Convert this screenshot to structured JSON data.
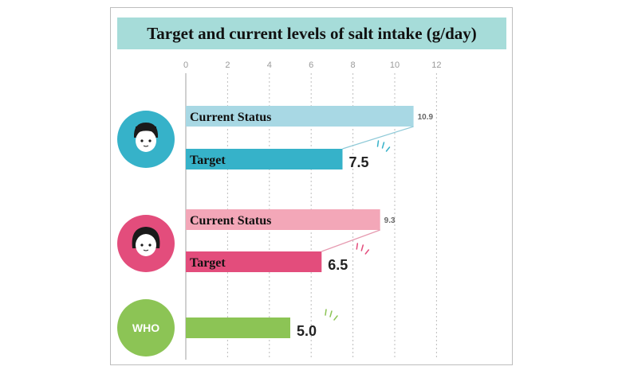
{
  "colors": {
    "title_bg": "#a6dcd9",
    "men_current": "#a8d8e4",
    "men_target": "#36b2c9",
    "men_icon": "#36b2c9",
    "women_current": "#f3a7b8",
    "women_target": "#e34d7c",
    "women_icon": "#e34d7c",
    "who": "#8cc455",
    "who_icon": "#8cc455"
  },
  "chart_data": {
    "type": "bar",
    "orientation": "horizontal",
    "title": "Target and current levels of salt intake (g/day)",
    "xlim": [
      0,
      12
    ],
    "ticks": [
      "0",
      "2",
      "4",
      "6",
      "8",
      "10",
      "12"
    ],
    "grid": true,
    "bars": [
      {
        "group": "men",
        "label": "Current Status",
        "value": 10.9,
        "value_label": "10.9",
        "style": "small"
      },
      {
        "group": "men",
        "label": "Target",
        "value": 7.5,
        "value_label": "7.5",
        "style": "big"
      },
      {
        "group": "women",
        "label": "Current Status",
        "value": 9.3,
        "value_label": "9.3",
        "style": "small"
      },
      {
        "group": "women",
        "label": "Target",
        "value": 6.5,
        "value_label": "6.5",
        "style": "big"
      },
      {
        "group": "who",
        "label": "",
        "value": 5.0,
        "value_label": "5.0",
        "style": "big"
      }
    ],
    "groups": [
      {
        "id": "men",
        "icon": "man-icon"
      },
      {
        "id": "women",
        "icon": "woman-icon"
      },
      {
        "id": "who",
        "icon": "who-icon",
        "icon_text": "WHO"
      }
    ]
  }
}
